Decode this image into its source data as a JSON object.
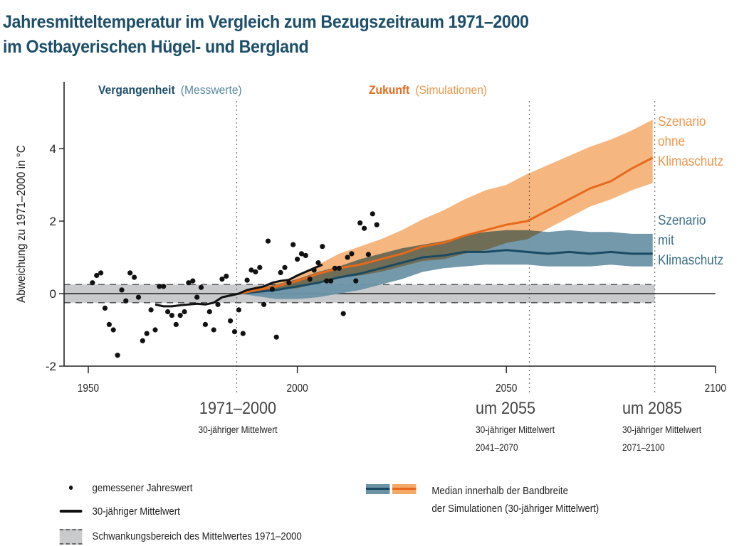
{
  "title": {
    "line1": "Jahresmitteltemperatur im Vergleich zum Bezugszeitraum 1971–2000",
    "line2": "im Ostbayerischen Hügel- und Bergland"
  },
  "colors": {
    "title": "#1d4f6b",
    "past_accent": "#1d4f6b",
    "past_light": "#5b8aa0",
    "future_accent": "#e8691b",
    "future_light": "#f0954a",
    "orange_band": "#f5a968",
    "orange_median": "#e8691b",
    "blue_band": "#6b93a6",
    "blue_median": "#1a4a63",
    "reference_band": "#c9cacc",
    "observed": "#111111"
  },
  "headers": {
    "past_bold": "Vergangenheit",
    "past_light": "(Messwerte)",
    "future_bold": "Zukunft",
    "future_light": "(Simulationen)"
  },
  "scenario_labels": {
    "without": [
      "Szenario",
      "ohne",
      "Klimaschutz"
    ],
    "with": [
      "Szenario",
      "mit",
      "Klimaschutz"
    ]
  },
  "period_labels": [
    {
      "big": "1971–2000",
      "line1": "30-jähriger Mittelwert",
      "line2": ""
    },
    {
      "big": "um 2055",
      "line1": "30-jähriger Mittelwert",
      "line2": "2041–2070"
    },
    {
      "big": "um 2085",
      "line1": "30-jähriger Mittelwert",
      "line2": "2071–2100"
    }
  ],
  "legend": {
    "observed": "gemessener Jahreswert",
    "mean30": "30-jähriger Mittelwert",
    "band": "Schwankungsbereich des Mittelwertes 1971–2000",
    "median_line1": "Median innerhalb der Bandbreite",
    "median_line2": "der Simulationen (30-jähriger Mittelwert)"
  },
  "chart_data": {
    "type": "line",
    "title": "Jahresmitteltemperatur im Vergleich zum Bezugszeitraum 1971–2000 im Ostbayerischen Hügel- und Bergland",
    "xlabel": "",
    "ylabel": "Abweichung zu 1971–2000 in °C",
    "xlim": [
      1945,
      2100
    ],
    "ylim": [
      -2,
      5.8
    ],
    "xticks": [
      1950,
      2000,
      2050,
      2100
    ],
    "yticks": [
      -2,
      0,
      2,
      4
    ],
    "grid": false,
    "reference_band": {
      "label": "Schwankungsbereich des Mittelwertes 1971–2000",
      "lower": -0.25,
      "upper": 0.25
    },
    "vertical_markers": [
      1985.5,
      2055.5,
      2085.5
    ],
    "observed": {
      "name": "gemessener Jahreswert",
      "x": [
        1951,
        1952,
        1953,
        1954,
        1955,
        1956,
        1957,
        1958,
        1959,
        1960,
        1961,
        1962,
        1963,
        1964,
        1965,
        1966,
        1967,
        1968,
        1969,
        1970,
        1971,
        1972,
        1973,
        1974,
        1975,
        1976,
        1977,
        1978,
        1979,
        1980,
        1981,
        1982,
        1983,
        1984,
        1985,
        1986,
        1987,
        1988,
        1989,
        1990,
        1991,
        1992,
        1993,
        1994,
        1995,
        1996,
        1997,
        1998,
        1999,
        2000,
        2001,
        2002,
        2003,
        2004,
        2005,
        2006,
        2007,
        2008,
        2009,
        2010,
        2011,
        2012,
        2013,
        2014,
        2015,
        2016,
        2017,
        2018,
        2019
      ],
      "y": [
        0.3,
        0.5,
        0.57,
        -0.4,
        -0.85,
        -1.0,
        -1.7,
        0.1,
        -0.2,
        0.57,
        0.45,
        -0.1,
        -1.3,
        -1.1,
        -0.45,
        -1.0,
        0.2,
        0.2,
        -0.5,
        -0.6,
        -0.85,
        -0.6,
        -0.5,
        0.3,
        0.35,
        -0.1,
        0.17,
        -0.85,
        -0.5,
        -1.0,
        -0.3,
        0.4,
        0.48,
        -0.75,
        -1.05,
        -0.45,
        -1.1,
        0.37,
        0.65,
        0.6,
        0.72,
        -0.3,
        1.45,
        0.12,
        -1.2,
        0.58,
        0.72,
        0.3,
        1.35,
        0.95,
        1.1,
        1.05,
        0.4,
        0.65,
        0.85,
        1.3,
        0.35,
        0.35,
        0.7,
        0.7,
        -0.55,
        1.0,
        1.1,
        0.35,
        1.95,
        1.8,
        1.08,
        2.2,
        1.9
      ]
    },
    "series": [
      {
        "name": "30-jähriger Mittelwert (gemessen)",
        "x": [
          1966,
          1968,
          1970,
          1972,
          1974,
          1976,
          1978,
          1980,
          1982,
          1984,
          1986,
          1988,
          1990,
          1992,
          1994,
          1996,
          1998,
          2000,
          2002,
          2004,
          2006
        ],
        "y": [
          -0.3,
          -0.35,
          -0.35,
          -0.32,
          -0.3,
          -0.28,
          -0.3,
          -0.25,
          -0.1,
          -0.05,
          0.0,
          0.1,
          0.15,
          0.2,
          0.3,
          0.35,
          0.38,
          0.5,
          0.6,
          0.7,
          0.8
        ]
      },
      {
        "name": "Szenario ohne Klimaschutz (Median)",
        "x": [
          1986,
          1995,
          2000,
          2005,
          2010,
          2015,
          2020,
          2025,
          2030,
          2035,
          2040,
          2045,
          2050,
          2055,
          2060,
          2065,
          2070,
          2075,
          2080,
          2085
        ],
        "y": [
          0.0,
          0.2,
          0.35,
          0.55,
          0.7,
          0.8,
          0.95,
          1.1,
          1.3,
          1.4,
          1.6,
          1.75,
          1.9,
          2.0,
          2.3,
          2.6,
          2.9,
          3.1,
          3.45,
          3.75
        ],
        "band_lower": [
          0.0,
          0.1,
          0.15,
          0.3,
          0.45,
          0.5,
          0.6,
          0.75,
          0.9,
          0.95,
          1.1,
          1.2,
          1.4,
          1.5,
          1.8,
          2.1,
          2.4,
          2.6,
          2.85,
          3.05
        ],
        "band_upper": [
          0.0,
          0.3,
          0.5,
          0.8,
          1.1,
          1.3,
          1.5,
          1.75,
          2.05,
          2.3,
          2.6,
          2.85,
          3.0,
          3.3,
          3.55,
          3.8,
          4.05,
          4.25,
          4.5,
          4.8
        ]
      },
      {
        "name": "Szenario mit Klimaschutz (Median)",
        "x": [
          1986,
          1995,
          2000,
          2005,
          2010,
          2015,
          2020,
          2025,
          2030,
          2035,
          2040,
          2045,
          2050,
          2055,
          2060,
          2065,
          2070,
          2075,
          2080,
          2085
        ],
        "y": [
          0.0,
          0.1,
          0.2,
          0.3,
          0.45,
          0.55,
          0.7,
          0.85,
          1.0,
          1.05,
          1.15,
          1.15,
          1.2,
          1.15,
          1.1,
          1.15,
          1.1,
          1.15,
          1.1,
          1.1
        ],
        "band_lower": [
          0.0,
          -0.15,
          -0.15,
          -0.1,
          0.0,
          0.1,
          0.25,
          0.4,
          0.6,
          0.7,
          0.75,
          0.8,
          0.8,
          0.8,
          0.75,
          0.75,
          0.75,
          0.8,
          0.75,
          0.75
        ],
        "band_upper": [
          0.0,
          0.25,
          0.4,
          0.6,
          0.75,
          0.95,
          1.1,
          1.25,
          1.35,
          1.45,
          1.6,
          1.7,
          1.75,
          1.75,
          1.7,
          1.75,
          1.7,
          1.7,
          1.65,
          1.65
        ]
      }
    ]
  }
}
